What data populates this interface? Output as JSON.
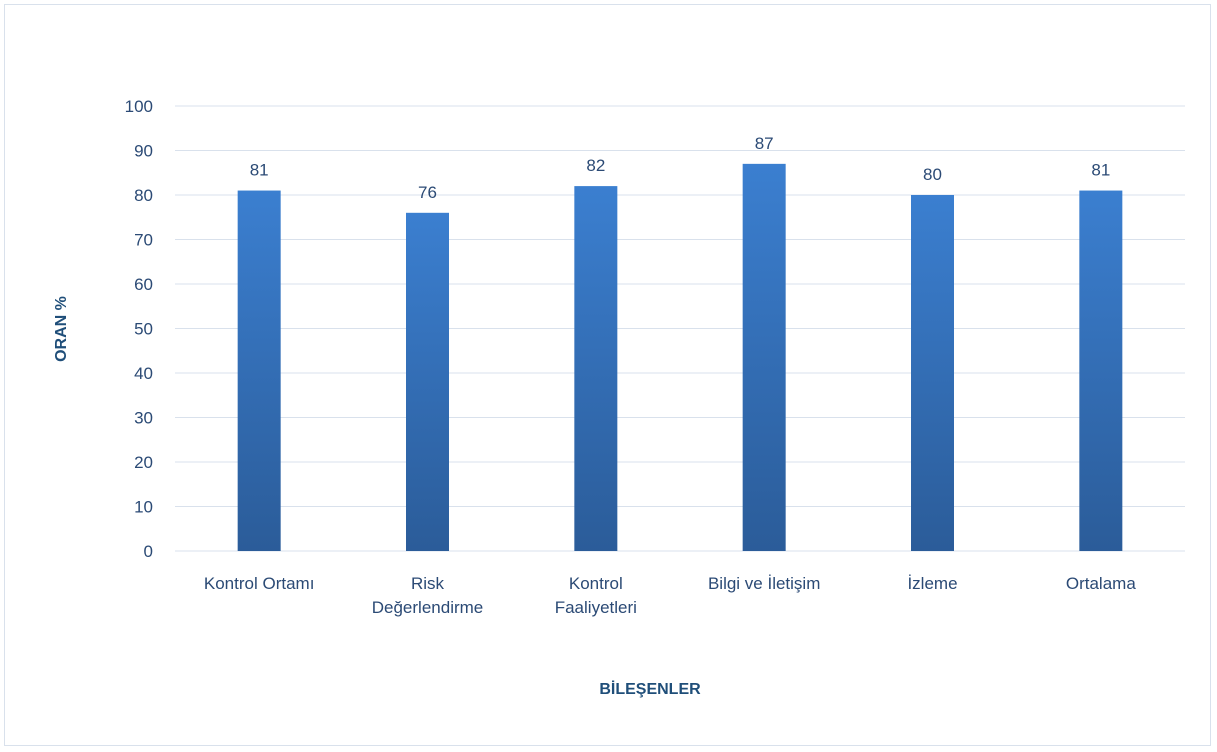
{
  "chart_data": {
    "type": "bar",
    "categories": [
      [
        "Kontrol Ortamı"
      ],
      [
        "Risk",
        "Değerlendirme"
      ],
      [
        "Kontrol",
        "Faaliyetleri"
      ],
      [
        "Bilgi ve İletişim"
      ],
      [
        "İzleme"
      ],
      [
        "Ortalama"
      ]
    ],
    "values": [
      81,
      76,
      82,
      87,
      80,
      81
    ],
    "xlabel": "BİLEŞENLER",
    "ylabel": "ORAN %",
    "ylim": [
      0,
      100
    ],
    "yticks": [
      0,
      10,
      20,
      30,
      40,
      50,
      60,
      70,
      80,
      90,
      100
    ],
    "grid": true,
    "legend": "none",
    "colors": {
      "bar_top": "#3b7fd0",
      "bar_bottom": "#2b5c99",
      "grid": "#d9e1ec",
      "text": "#2b4a75"
    }
  }
}
